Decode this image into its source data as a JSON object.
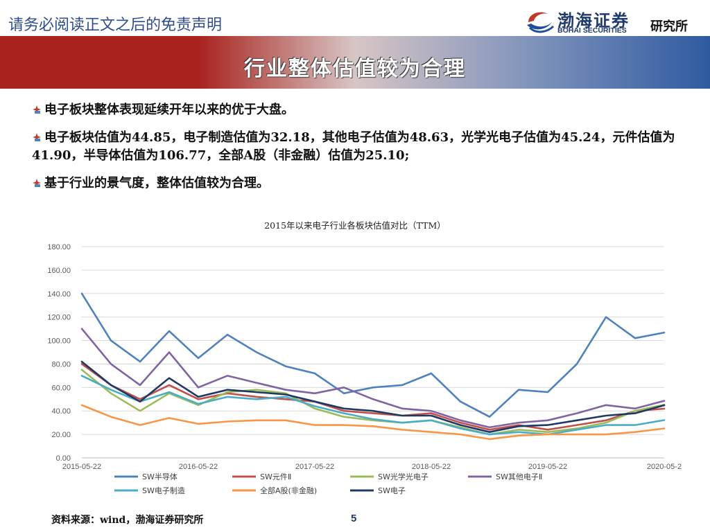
{
  "header": {
    "disclaimer": "请务必阅读正文之后的免责声明",
    "logo_cn": "渤海证券",
    "logo_en": "BOHAI SECURITIES",
    "logo_dept": "研究所"
  },
  "banner": {
    "title": "行业整体估值较为合理"
  },
  "bullets": [
    {
      "text": "电子板块整体表现延续开年以来的优于大盘。"
    },
    {
      "text": "电子板块估值为44.85，电子制造估值为32.18，其他电子估值为48.63，光学光电子估值为45.24，元件估值为41.90，半导体估值为106.77，全部A股（非金融）估值为25.10;"
    },
    {
      "text": "基于行业的景气度，整体估值较为合理。"
    }
  ],
  "colors": {
    "banner_red": "#a8231e",
    "banner_blue": "#2f5aa0",
    "bullet_icon": "#c0392b",
    "semi": "#4f81bd",
    "component": "#c0504d",
    "optics": "#9bbb59",
    "other": "#8064a2",
    "manufacturing": "#4bacc6",
    "all_a": "#f79646",
    "electronics": "#1f3864"
  },
  "chart_data": {
    "type": "line",
    "title": "2015年以来电子行业各板块估值对比（TTM）",
    "x": [
      "2015-05-22",
      "2015-08-22",
      "2015-11-22",
      "2016-02-22",
      "2016-05-22",
      "2016-08-22",
      "2016-11-22",
      "2017-02-22",
      "2017-05-22",
      "2017-08-22",
      "2017-11-22",
      "2018-02-22",
      "2018-05-22",
      "2018-08-22",
      "2018-11-22",
      "2019-02-22",
      "2019-05-22",
      "2019-08-22",
      "2019-11-22",
      "2020-02-22",
      "2020-05-22"
    ],
    "xticks": [
      "2015-05-22",
      "2016-05-22",
      "2017-05-22",
      "2018-05-22",
      "2019-05-22",
      "2020-05-2"
    ],
    "ylim": [
      0,
      180
    ],
    "yticks": [
      "0.00",
      "20.00",
      "40.00",
      "60.00",
      "80.00",
      "100.00",
      "120.00",
      "140.00",
      "160.00",
      "180.00"
    ],
    "grid": true,
    "legend": "bottom",
    "series": [
      {
        "name": "SW半导体",
        "color": "#4f81bd",
        "values": [
          140,
          100,
          82,
          108,
          85,
          105,
          90,
          78,
          72,
          55,
          60,
          62,
          72,
          48,
          35,
          58,
          56,
          80,
          120,
          102,
          106.77
        ]
      },
      {
        "name": "SW元件Ⅱ",
        "color": "#c0504d",
        "values": [
          80,
          62,
          50,
          62,
          50,
          55,
          52,
          50,
          48,
          40,
          38,
          36,
          38,
          30,
          24,
          28,
          24,
          28,
          32,
          40,
          41.9
        ]
      },
      {
        "name": "SW光学光电子",
        "color": "#9bbb59",
        "values": [
          75,
          55,
          40,
          55,
          45,
          56,
          58,
          55,
          42,
          35,
          32,
          30,
          32,
          26,
          20,
          24,
          22,
          25,
          30,
          40,
          45.24
        ]
      },
      {
        "name": "SW其他电子Ⅱ",
        "color": "#8064a2",
        "values": [
          110,
          80,
          62,
          90,
          60,
          70,
          64,
          58,
          55,
          60,
          50,
          42,
          40,
          32,
          26,
          30,
          32,
          38,
          45,
          42,
          48.63
        ]
      },
      {
        "name": "SW电子制造",
        "color": "#4bacc6",
        "values": [
          70,
          58,
          48,
          56,
          46,
          52,
          50,
          52,
          44,
          38,
          33,
          30,
          32,
          25,
          20,
          22,
          20,
          24,
          28,
          28,
          32.18
        ]
      },
      {
        "name": "全部A股(非金融)",
        "color": "#f79646",
        "values": [
          45,
          35,
          28,
          34,
          29,
          31,
          32,
          32,
          28,
          28,
          27,
          24,
          22,
          20,
          16,
          19,
          20,
          20,
          20,
          22,
          25.1
        ]
      },
      {
        "name": "SW电子",
        "color": "#1f3864",
        "values": [
          82,
          62,
          48,
          68,
          52,
          58,
          56,
          54,
          48,
          42,
          40,
          36,
          36,
          28,
          22,
          27,
          28,
          32,
          36,
          38,
          44.85
        ]
      }
    ]
  },
  "footer": {
    "source": "资料来源：wind，渤海证券研究所",
    "page": "5"
  }
}
